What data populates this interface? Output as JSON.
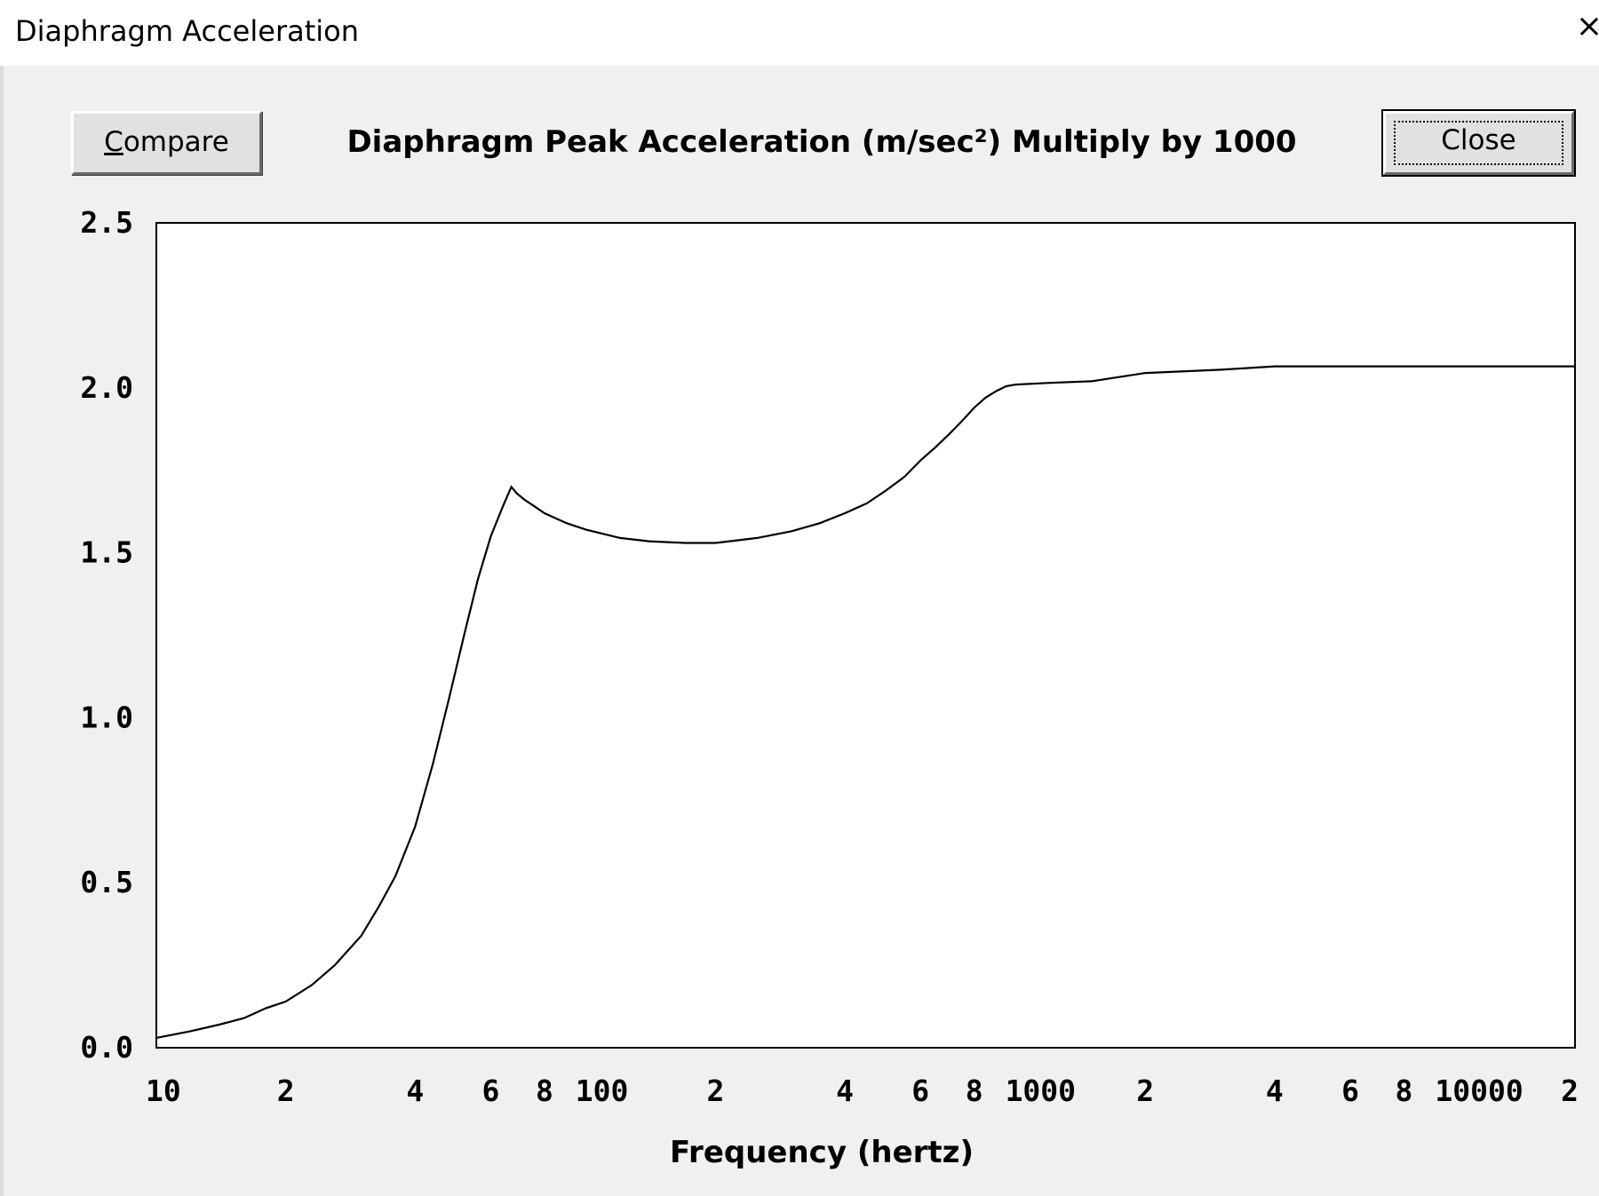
{
  "window": {
    "title": "Diaphragm Acceleration",
    "close_glyph": "×"
  },
  "toolbar": {
    "compare_mnemonic": "C",
    "compare_rest": "ompare",
    "close_label": "Close"
  },
  "chart_data": {
    "type": "line",
    "title": "Diaphragm Peak Acceleration (m/sec²)   Multiply by 1000",
    "xlabel": "Frequency (hertz)",
    "ylabel": "",
    "xscale": "log",
    "xlim": [
      10,
      20000
    ],
    "ylim": [
      0,
      2.5
    ],
    "grid": true,
    "legend": "none",
    "y_ticks": [
      "0.0",
      "0.5",
      "1.0",
      "1.5",
      "2.0",
      "2.5"
    ],
    "x_ticks": [
      {
        "value": 10,
        "label": "10"
      },
      {
        "value": 20,
        "label": "2"
      },
      {
        "value": 40,
        "label": "4"
      },
      {
        "value": 60,
        "label": "6"
      },
      {
        "value": 80,
        "label": "8"
      },
      {
        "value": 100,
        "label": "100"
      },
      {
        "value": 200,
        "label": "2"
      },
      {
        "value": 400,
        "label": "4"
      },
      {
        "value": 600,
        "label": "6"
      },
      {
        "value": 800,
        "label": "8"
      },
      {
        "value": 1000,
        "label": "1000"
      },
      {
        "value": 2000,
        "label": "2"
      },
      {
        "value": 4000,
        "label": "4"
      },
      {
        "value": 6000,
        "label": "6"
      },
      {
        "value": 8000,
        "label": "8"
      },
      {
        "value": 10000,
        "label": "10000"
      },
      {
        "value": 20000,
        "label": "2"
      }
    ],
    "line_color": "#000000",
    "series": [
      {
        "x": [
          10,
          12,
          14,
          16,
          18,
          20,
          23,
          26,
          30,
          33,
          36,
          40,
          44,
          48,
          52,
          56,
          60,
          64,
          67,
          69,
          72,
          76,
          80,
          90,
          100,
          120,
          140,
          170,
          200,
          250,
          300,
          350,
          400,
          450,
          500,
          550,
          600,
          650,
          700,
          750,
          800,
          850,
          900,
          950,
          1000,
          1200,
          1500,
          2000,
          3000,
          4000,
          6000,
          10000,
          20000
        ],
        "y": [
          0.03,
          0.05,
          0.07,
          0.09,
          0.12,
          0.14,
          0.19,
          0.25,
          0.34,
          0.43,
          0.52,
          0.67,
          0.86,
          1.06,
          1.25,
          1.42,
          1.55,
          1.64,
          1.7,
          1.68,
          1.66,
          1.64,
          1.62,
          1.59,
          1.57,
          1.545,
          1.535,
          1.53,
          1.53,
          1.545,
          1.565,
          1.59,
          1.62,
          1.65,
          1.69,
          1.73,
          1.78,
          1.82,
          1.86,
          1.9,
          1.94,
          1.97,
          1.99,
          2.005,
          2.01,
          2.015,
          2.02,
          2.045,
          2.055,
          2.065,
          2.065,
          2.065,
          2.065
        ]
      }
    ]
  }
}
